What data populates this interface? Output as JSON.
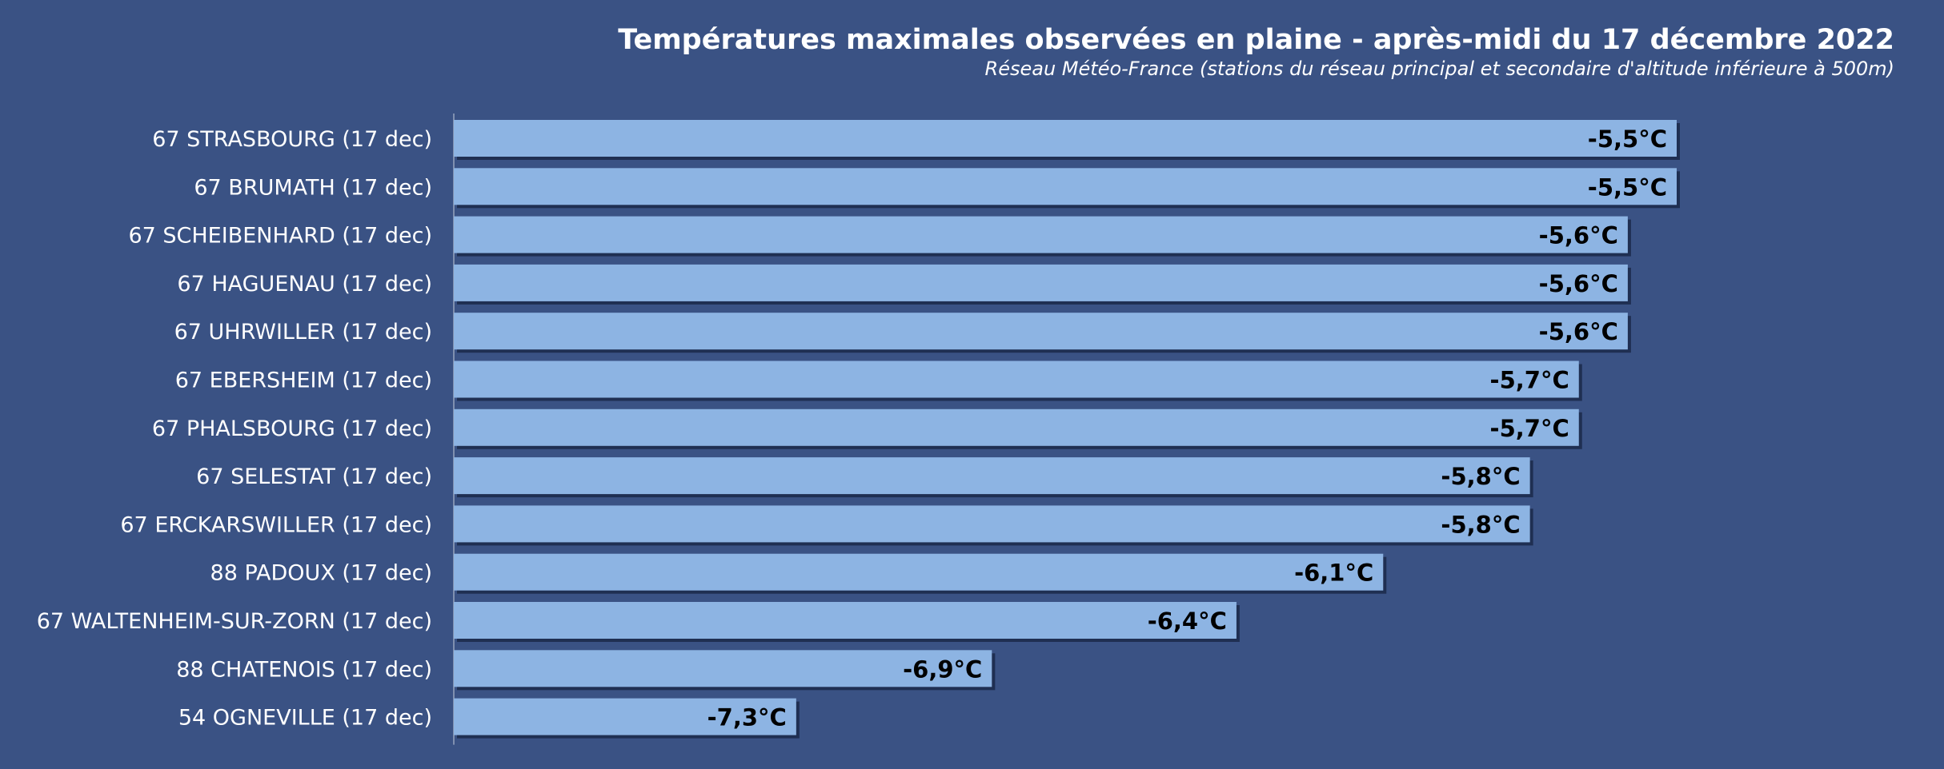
{
  "colors": {
    "background": "#3a5284",
    "bar": "#8db4e3",
    "bar_shadow": "#1f2f52",
    "axis": "#8090b0",
    "category_text": "#ffffff",
    "value_text": "#000000"
  },
  "chart_data": {
    "type": "bar",
    "orientation": "horizontal",
    "title": "Températures maximales observées en plaine - après-midi du 17 décembre 2022",
    "subtitle": "Réseau Météo-France (stations du réseau principal et secondaire d'altitude inférieure à 500m)",
    "xlabel": "",
    "ylabel": "",
    "grid": false,
    "legend": "none",
    "categories": [
      "67 STRASBOURG (17 dec)",
      "67 BRUMATH (17 dec)",
      "67 SCHEIBENHARD (17 dec)",
      "67 HAGUENAU (17 dec)",
      "67 UHRWILLER (17 dec)",
      "67 EBERSHEIM (17 dec)",
      "67 PHALSBOURG (17 dec)",
      "67 SELESTAT (17 dec)",
      "67 ERCKARSWILLER (17 dec)",
      "88 PADOUX (17 dec)",
      "67 WALTENHEIM-SUR-ZORN (17 dec)",
      "88 CHATENOIS (17 dec)",
      "54 OGNEVILLE (17 dec)"
    ],
    "values": [
      -5.5,
      -5.5,
      -5.6,
      -5.6,
      -5.6,
      -5.7,
      -5.7,
      -5.8,
      -5.8,
      -6.1,
      -6.4,
      -6.9,
      -7.3
    ],
    "value_labels": [
      "-5,5°C",
      "-5,5°C",
      "-5,6°C",
      "-5,6°C",
      "-5,6°C",
      "-5,7°C",
      "-5,7°C",
      "-5,8°C",
      "-5,8°C",
      "-6,1°C",
      "-6,4°C",
      "-6,9°C",
      "-7,3°C"
    ],
    "xlim": [
      -8.0,
      -5.0
    ]
  }
}
